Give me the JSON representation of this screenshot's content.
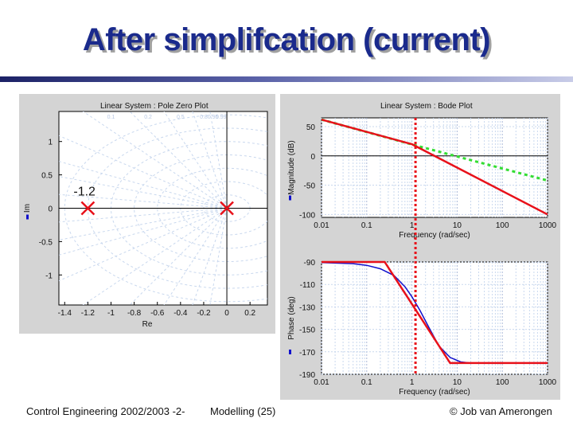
{
  "slide": {
    "title": "After simplifcation (current)",
    "footer_left": "Control Engineering 2002/2003 -2-",
    "footer_center": "Modelling  (25)",
    "footer_right": "© Job van Amerongen"
  },
  "colors": {
    "title": "#1a2a8c",
    "accent_red": "#e8111a",
    "grid": "#c9d8ee",
    "asymptote_green": "#33dd33",
    "curve_blue": "#1010cc"
  },
  "pz_plot": {
    "title": "Linear System : Pole Zero Plot",
    "xlabel": "Re",
    "ylabel": "Im",
    "xticks": [
      "-1.4",
      "-1.2",
      "-1",
      "-0.8",
      "-0.6",
      "-0.4",
      "-0.2",
      "0",
      "0.2"
    ],
    "yticks": [
      "1",
      "0.5",
      "0",
      "-0.5",
      "-1"
    ],
    "damping_labels": [
      "0.1",
      "0.2",
      "0.5",
      "0.8",
      "0.95",
      "0.99"
    ],
    "annotation": "-1.2"
  },
  "bode_plot": {
    "title": "Linear System : Bode Plot",
    "mag_ylabel": "Magnitude (dB)",
    "phase_ylabel": "Phase (deg)",
    "xlabel": "Frequency (rad/sec)",
    "xticks": [
      "0.01",
      "0.1",
      "1",
      "10",
      "100",
      "1000"
    ],
    "mag_yticks": [
      "50",
      "0",
      "-50",
      "-100"
    ],
    "phase_yticks": [
      "-90",
      "-110",
      "-130",
      "-150",
      "-170",
      "-190"
    ]
  },
  "chart_data": [
    {
      "type": "scatter",
      "title": "Linear System : Pole Zero Plot",
      "xlabel": "Re",
      "ylabel": "Im",
      "xlim": [
        -1.45,
        0.35
      ],
      "ylim": [
        -1.45,
        1.45
      ],
      "grid": true,
      "series": [
        {
          "name": "",
          "marker": "x",
          "x": [
            -1.2,
            0
          ],
          "y": [
            0,
            0
          ]
        }
      ]
    },
    {
      "type": "line",
      "title": "Linear System : Bode Plot",
      "xlabel": "Frequency (rad/sec)",
      "ylabel": "Magnitude (dB)",
      "xscale": "log",
      "xlim": [
        0.01,
        1000
      ],
      "ylim": [
        -105,
        65
      ],
      "grid": true,
      "series": [
        {
          "name": "",
          "x": [
            0.01,
            1,
            1000
          ],
          "y": [
            62,
            20,
            -100
          ]
        },
        {
          "name": "",
          "x": [
            0.01,
            1.2,
            1000
          ],
          "y": [
            62,
            18,
            -42
          ]
        },
        {
          "name": "",
          "x": [
            1,
            10,
            1000
          ],
          "y": [
            20,
            -3,
            -102
          ]
        }
      ],
      "vertical_marker_x": 1.2
    },
    {
      "type": "line",
      "title": "",
      "xlabel": "Frequency (rad/sec)",
      "ylabel": "Phase (deg)",
      "xscale": "log",
      "xlim": [
        0.01,
        1000
      ],
      "ylim": [
        -190,
        -90
      ],
      "grid": true,
      "series": [
        {
          "name": "",
          "x": [
            0.01,
            0.25,
            7,
            1000
          ],
          "y": [
            -90,
            -90,
            -180,
            -180
          ]
        },
        {
          "name": "",
          "x": [
            0.01,
            0.05,
            0.1,
            0.2,
            0.4,
            0.7,
            1,
            1.5,
            2.5,
            4,
            7,
            12,
            20,
            50,
            100
          ],
          "y": [
            -90.5,
            -91.5,
            -93,
            -96,
            -102,
            -112,
            -121,
            -133,
            -150,
            -165,
            -175,
            -179,
            -180,
            -180,
            -180
          ]
        }
      ],
      "vertical_marker_x": 1.2
    }
  ]
}
